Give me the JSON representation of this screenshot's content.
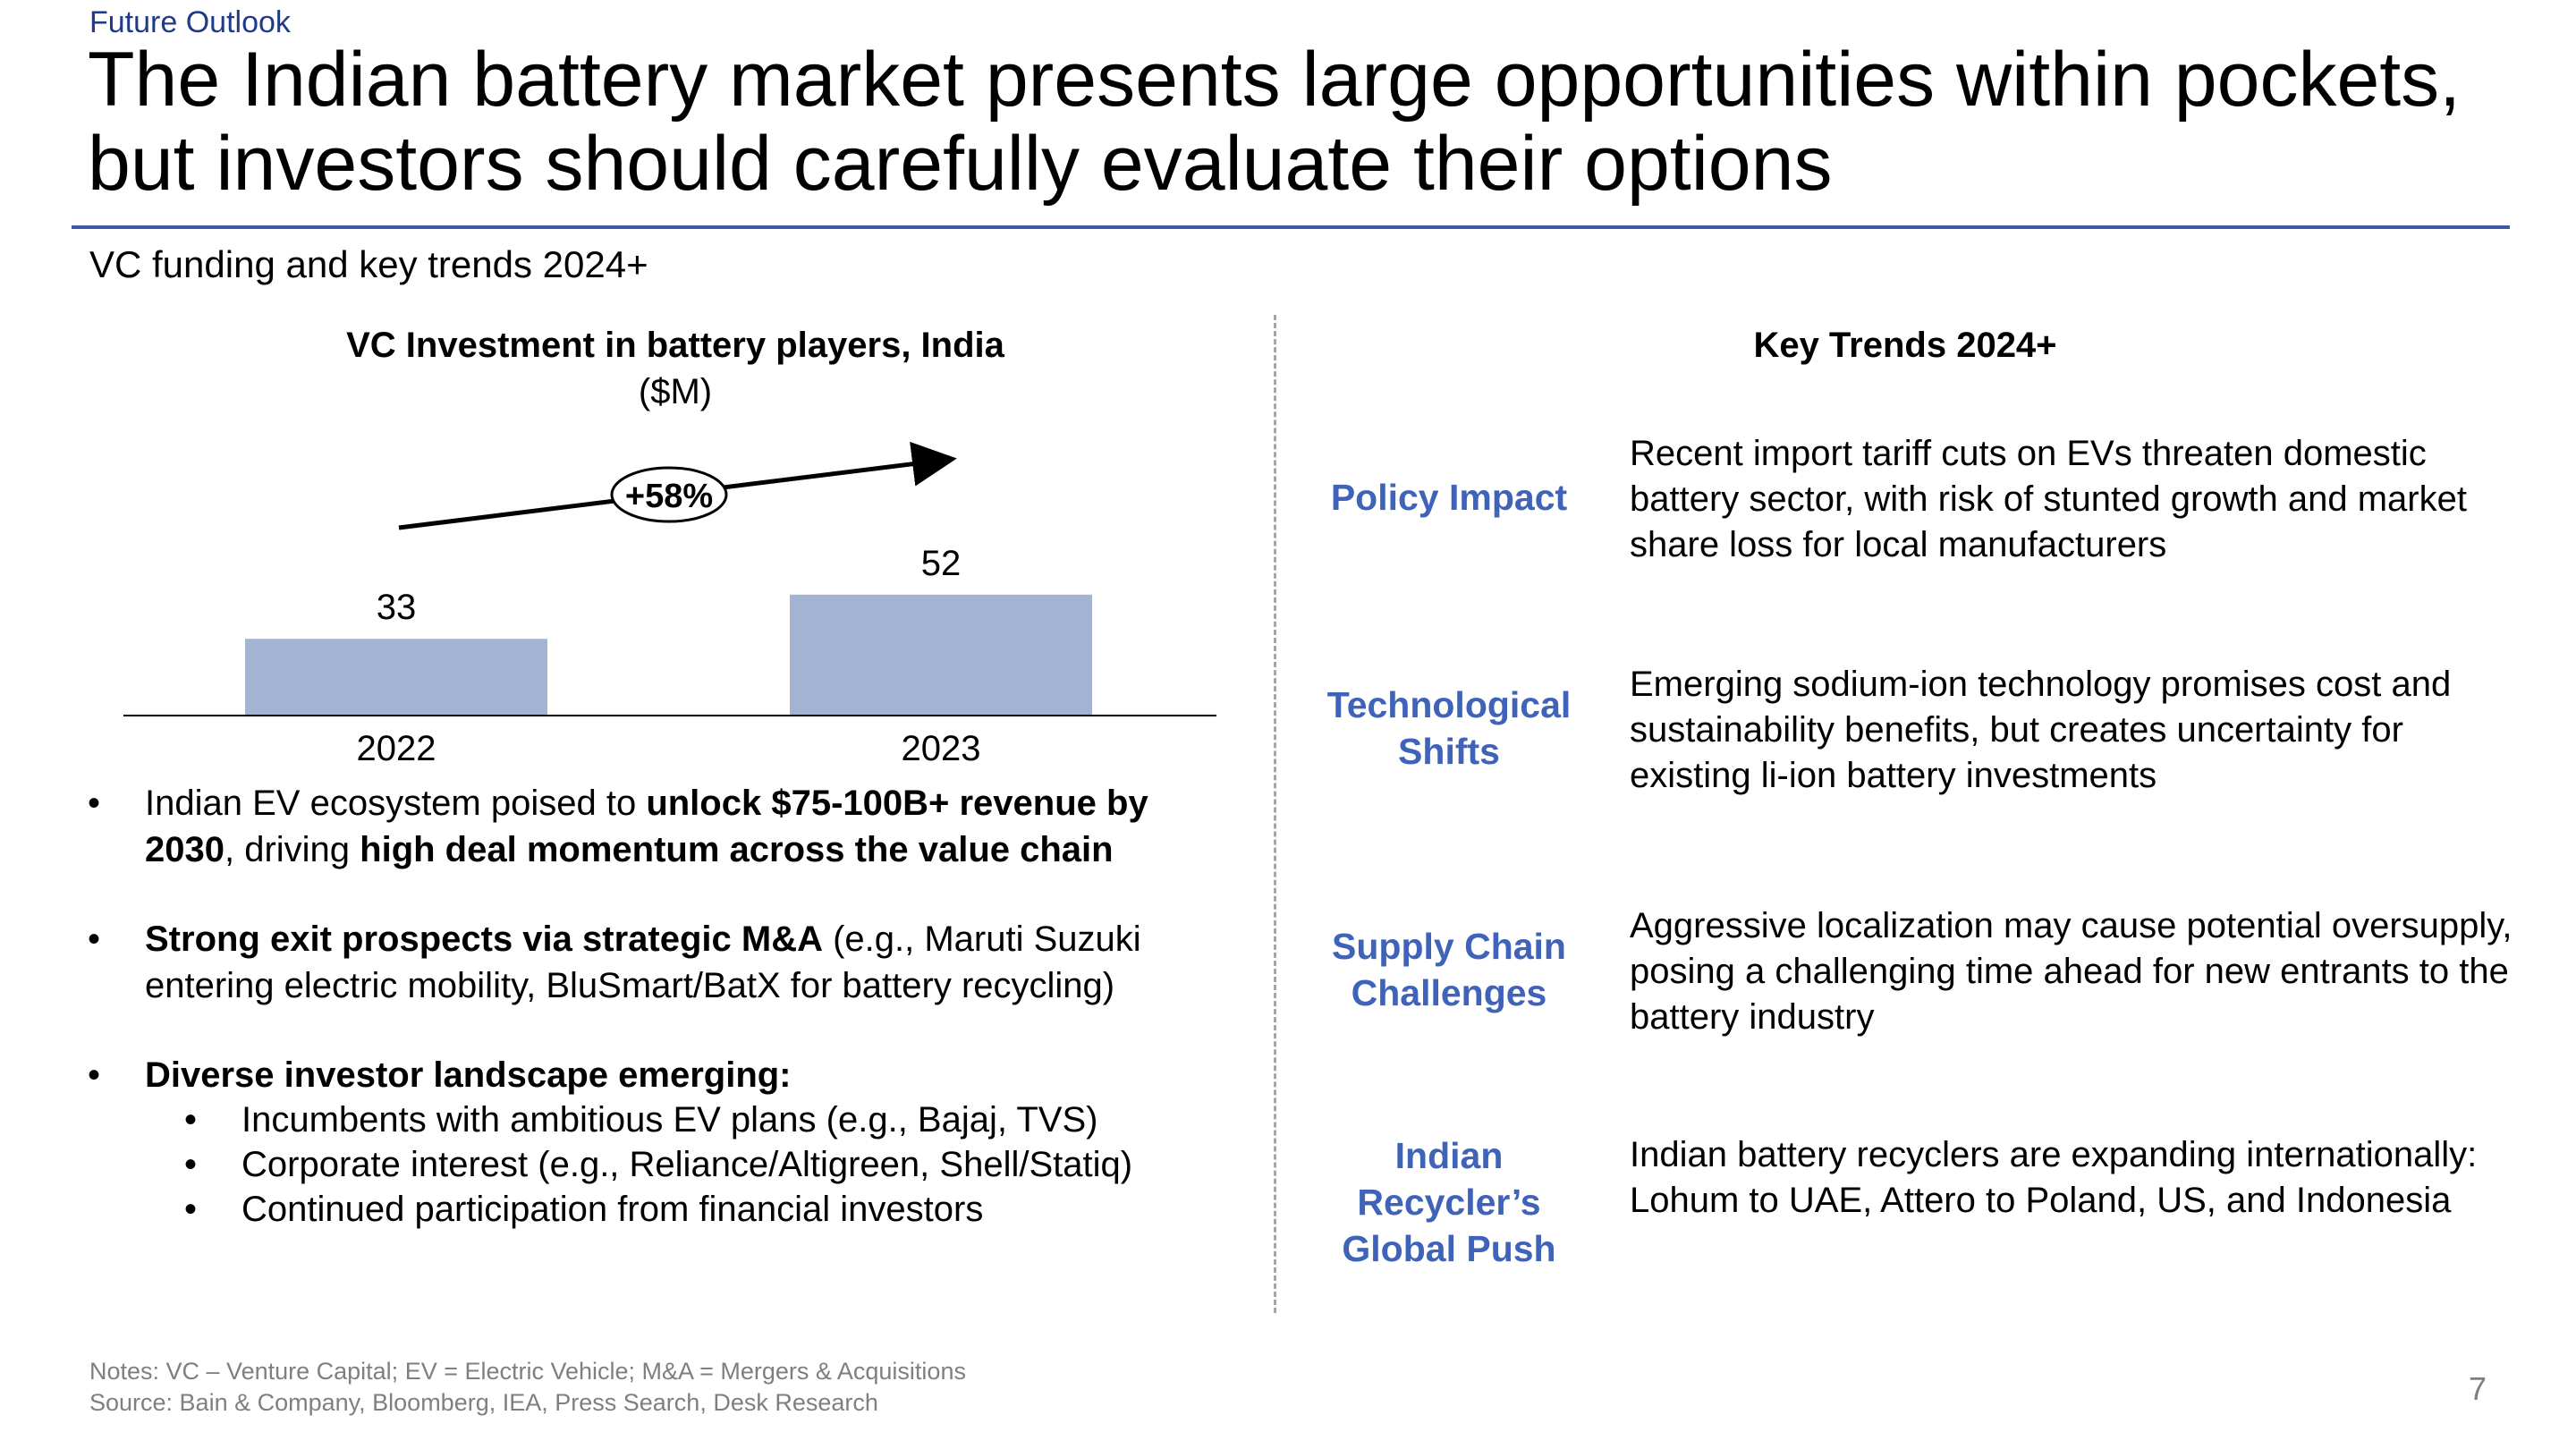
{
  "section_label": "Future Outlook",
  "title": "The Indian battery market presents large opportunities within pockets, but investors should carefully evaluate their options",
  "subtitle": "VC funding and key trends 2024+",
  "chart_data": {
    "type": "bar",
    "title": "VC Investment in battery players, India",
    "unit": "($M)",
    "categories": [
      "2022",
      "2023"
    ],
    "values": [
      33,
      52
    ],
    "growth_label": "+58%",
    "bar_color": "#a2b4d2",
    "xlabel": "",
    "ylabel": "",
    "grid": false
  },
  "bullets": {
    "b1": {
      "t1": "Indian EV ecosystem poised to ",
      "t2": "unlock $75-100B+ revenue by 2030",
      "t3": ", driving ",
      "t4": "high deal momentum across the value chain"
    },
    "b2": {
      "t1": "Strong exit prospects via strategic M&A",
      "t2": " (e.g., Maruti Suzuki entering electric mobility, BluSmart/BatX for battery recycling)"
    },
    "b3": {
      "t1": "Diverse investor landscape emerging:"
    },
    "sub": [
      "Incumbents with ambitious EV plans (e.g., Bajaj, TVS)",
      "Corporate interest (e.g., Reliance/Altigreen, Shell/Statiq)",
      "Continued participation from financial investors"
    ],
    "symbol": "•"
  },
  "trends": {
    "title": "Key Trends 2024+",
    "items": [
      {
        "label": "Policy Impact",
        "text": "Recent import tariff cuts on EVs threaten domestic battery sector, with risk of stunted growth and market share loss for local manufacturers"
      },
      {
        "label": "Technological Shifts",
        "text": "Emerging sodium-ion technology promises cost and sustainability benefits, but creates uncertainty for existing li-ion battery investments"
      },
      {
        "label": "Supply Chain Challenges",
        "text": "Aggressive localization may cause potential oversupply, posing a challenging time ahead for new entrants to the battery industry"
      },
      {
        "label": "Indian Recycler’s Global Push",
        "text": "Indian battery recyclers are expanding internationally: Lohum to UAE, Attero to Poland, US, and Indonesia"
      }
    ]
  },
  "notes": "Notes: VC – Venture Capital; EV = Electric Vehicle; M&A = Mergers & Acquisitions",
  "source": "Source: Bain & Company, Bloomberg, IEA, Press Search, Desk Research",
  "page_number": "7"
}
